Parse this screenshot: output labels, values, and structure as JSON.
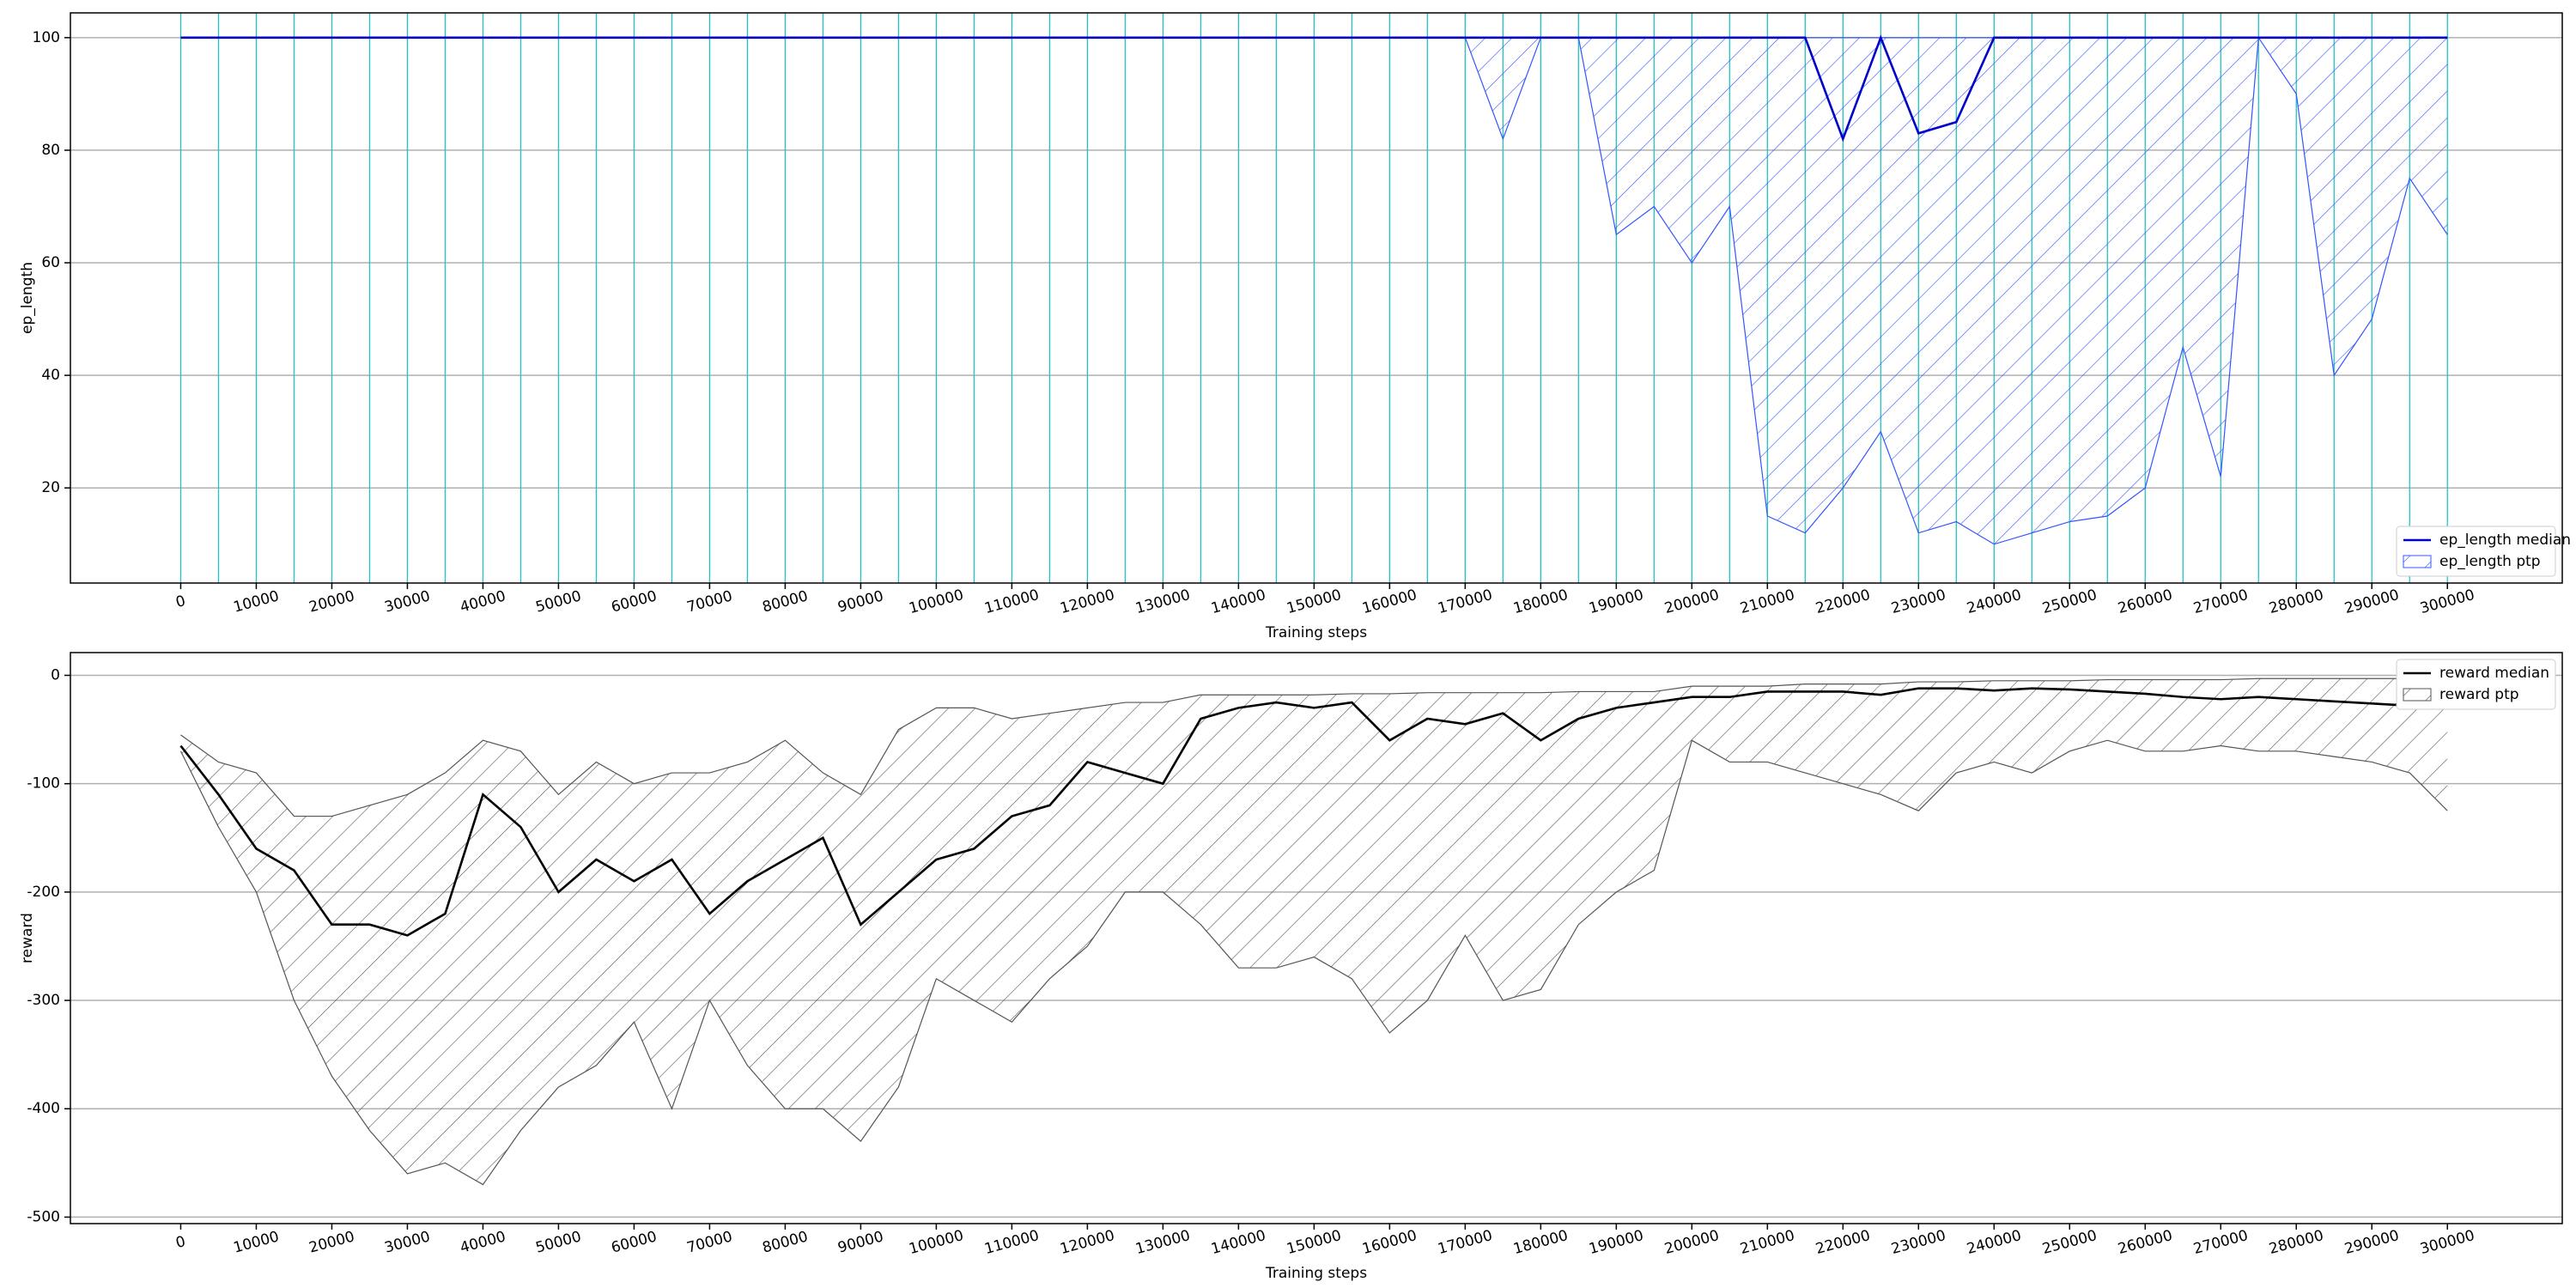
{
  "chart_data": [
    {
      "type": "line",
      "xlabel": "Training steps",
      "ylabel": "ep_length",
      "x": [
        0,
        5000,
        10000,
        15000,
        20000,
        25000,
        30000,
        35000,
        40000,
        45000,
        50000,
        55000,
        60000,
        65000,
        70000,
        75000,
        80000,
        85000,
        90000,
        95000,
        100000,
        105000,
        110000,
        115000,
        120000,
        125000,
        130000,
        135000,
        140000,
        145000,
        150000,
        155000,
        160000,
        165000,
        170000,
        175000,
        180000,
        185000,
        190000,
        195000,
        200000,
        205000,
        210000,
        215000,
        220000,
        225000,
        230000,
        235000,
        240000,
        245000,
        250000,
        255000,
        260000,
        265000,
        270000,
        275000,
        280000,
        285000,
        290000,
        295000,
        300000
      ],
      "series": [
        {
          "name": "ep_length median",
          "color": "#0000cc",
          "values": [
            100,
            100,
            100,
            100,
            100,
            100,
            100,
            100,
            100,
            100,
            100,
            100,
            100,
            100,
            100,
            100,
            100,
            100,
            100,
            100,
            100,
            100,
            100,
            100,
            100,
            100,
            100,
            100,
            100,
            100,
            100,
            100,
            100,
            100,
            100,
            100,
            100,
            100,
            100,
            100,
            100,
            100,
            100,
            100,
            82,
            100,
            83,
            85,
            100,
            100,
            100,
            100,
            100,
            100,
            100,
            100,
            100,
            100,
            100,
            100,
            100
          ]
        }
      ],
      "band": {
        "name": "ep_length ptp",
        "color": "#3355ff",
        "lower": [
          100,
          100,
          100,
          100,
          100,
          100,
          100,
          100,
          100,
          100,
          100,
          100,
          100,
          100,
          100,
          100,
          100,
          100,
          100,
          100,
          100,
          100,
          100,
          100,
          100,
          100,
          100,
          100,
          100,
          100,
          100,
          100,
          100,
          100,
          100,
          82,
          100,
          100,
          65,
          70,
          60,
          70,
          15,
          12,
          20,
          30,
          12,
          14,
          10,
          12,
          14,
          15,
          20,
          45,
          22,
          100,
          90,
          40,
          50,
          75,
          65
        ],
        "upper": [
          100,
          100,
          100,
          100,
          100,
          100,
          100,
          100,
          100,
          100,
          100,
          100,
          100,
          100,
          100,
          100,
          100,
          100,
          100,
          100,
          100,
          100,
          100,
          100,
          100,
          100,
          100,
          100,
          100,
          100,
          100,
          100,
          100,
          100,
          100,
          100,
          100,
          100,
          100,
          100,
          100,
          100,
          100,
          100,
          100,
          100,
          100,
          100,
          100,
          100,
          100,
          100,
          100,
          100,
          100,
          100,
          100,
          100,
          100,
          100,
          100
        ]
      },
      "xlim": [
        -14600,
        315200
      ],
      "ylim": [
        3.1,
        104.4
      ],
      "xticks": [
        0,
        10000,
        20000,
        30000,
        40000,
        50000,
        60000,
        70000,
        80000,
        90000,
        100000,
        110000,
        120000,
        130000,
        140000,
        150000,
        160000,
        170000,
        180000,
        190000,
        200000,
        210000,
        220000,
        230000,
        240000,
        250000,
        260000,
        270000,
        280000,
        290000,
        300000
      ],
      "yticks": [
        20,
        40,
        60,
        80,
        100
      ],
      "grid": true,
      "legend": "lower right",
      "marker_lines": "#22c4c4"
    },
    {
      "type": "line",
      "xlabel": "Training steps",
      "ylabel": "reward",
      "x": [
        0,
        5000,
        10000,
        15000,
        20000,
        25000,
        30000,
        35000,
        40000,
        45000,
        50000,
        55000,
        60000,
        65000,
        70000,
        75000,
        80000,
        85000,
        90000,
        95000,
        100000,
        105000,
        110000,
        115000,
        120000,
        125000,
        130000,
        135000,
        140000,
        145000,
        150000,
        155000,
        160000,
        165000,
        170000,
        175000,
        180000,
        185000,
        190000,
        195000,
        200000,
        205000,
        210000,
        215000,
        220000,
        225000,
        230000,
        235000,
        240000,
        245000,
        250000,
        255000,
        260000,
        265000,
        270000,
        275000,
        280000,
        285000,
        290000,
        295000,
        300000
      ],
      "series": [
        {
          "name": "reward median",
          "color": "#000000",
          "values": [
            -65,
            -110,
            -160,
            -180,
            -230,
            -230,
            -240,
            -220,
            -110,
            -140,
            -200,
            -170,
            -190,
            -170,
            -220,
            -190,
            -170,
            -150,
            -230,
            -200,
            -170,
            -160,
            -130,
            -120,
            -80,
            -90,
            -100,
            -40,
            -30,
            -25,
            -30,
            -25,
            -60,
            -40,
            -45,
            -35,
            -60,
            -40,
            -30,
            -25,
            -20,
            -20,
            -15,
            -15,
            -15,
            -18,
            -12,
            -12,
            -14,
            -12,
            -13,
            -15,
            -17,
            -20,
            -22,
            -20,
            -22,
            -24,
            -26,
            -28,
            -28
          ]
        }
      ],
      "band": {
        "name": "reward ptp",
        "color": "#555555",
        "lower": [
          -70,
          -140,
          -200,
          -300,
          -370,
          -420,
          -460,
          -450,
          -470,
          -420,
          -380,
          -360,
          -320,
          -400,
          -300,
          -360,
          -400,
          -400,
          -430,
          -380,
          -280,
          -300,
          -320,
          -280,
          -250,
          -200,
          -200,
          -230,
          -270,
          -270,
          -260,
          -280,
          -330,
          -300,
          -240,
          -300,
          -290,
          -230,
          -200,
          -180,
          -60,
          -80,
          -80,
          -90,
          -100,
          -110,
          -125,
          -90,
          -80,
          -90,
          -70,
          -60,
          -70,
          -70,
          -65,
          -70,
          -70,
          -75,
          -80,
          -90,
          -125
        ],
        "upper": [
          -55,
          -80,
          -90,
          -130,
          -130,
          -120,
          -110,
          -90,
          -60,
          -70,
          -110,
          -80,
          -100,
          -90,
          -90,
          -80,
          -60,
          -90,
          -110,
          -50,
          -30,
          -30,
          -40,
          -35,
          -30,
          -25,
          -25,
          -18,
          -18,
          -18,
          -18,
          -17,
          -17,
          -16,
          -16,
          -16,
          -16,
          -15,
          -15,
          -15,
          -10,
          -10,
          -10,
          -8,
          -8,
          -8,
          -6,
          -6,
          -5,
          -5,
          -5,
          -4,
          -4,
          -4,
          -4,
          -3,
          -3,
          -3,
          -3,
          -3,
          -3
        ]
      },
      "xlim": [
        -14600,
        315200
      ],
      "ylim": [
        -506,
        21
      ],
      "xticks": [
        0,
        10000,
        20000,
        30000,
        40000,
        50000,
        60000,
        70000,
        80000,
        90000,
        100000,
        110000,
        120000,
        130000,
        140000,
        150000,
        160000,
        170000,
        180000,
        190000,
        200000,
        210000,
        220000,
        230000,
        240000,
        250000,
        260000,
        270000,
        280000,
        290000,
        300000
      ],
      "yticks": [
        -500,
        -400,
        -300,
        -200,
        -100,
        0
      ],
      "grid": true,
      "legend": "upper right"
    }
  ]
}
